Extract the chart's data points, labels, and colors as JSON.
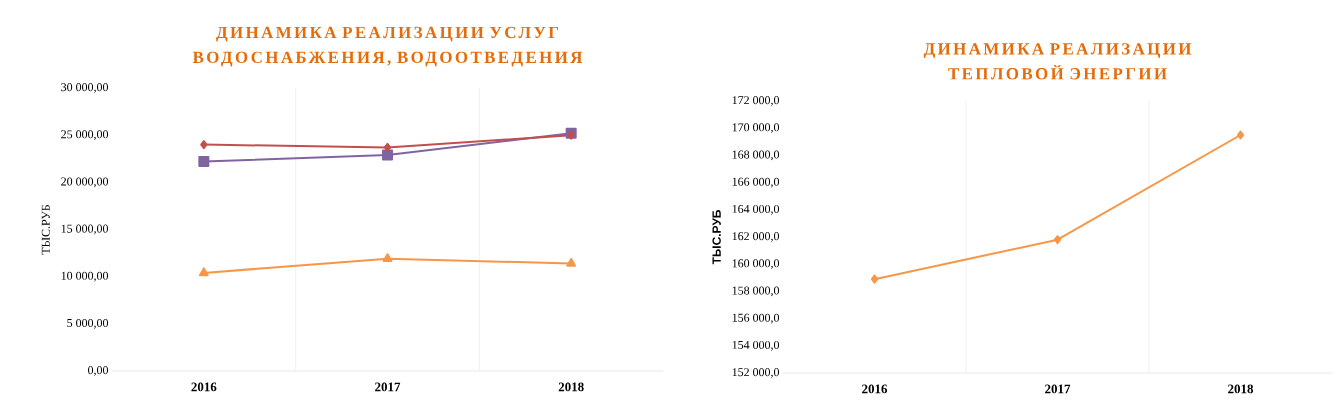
{
  "chart_data": [
    {
      "type": "line",
      "title": "ДИНАМИКА РЕАЛИЗАЦИИ УСЛУГ ВОДОСНАБЖЕНИЯ, ВОДООТВЕДЕНИЯ",
      "ylabel": "ТЫС.РУБ",
      "categories": [
        "2016",
        "2017",
        "2018"
      ],
      "series": [
        {
          "color": "#c0504d",
          "marker": "diamond",
          "values": [
            24000,
            23700,
            25000
          ]
        },
        {
          "color": "#8064a2",
          "marker": "square",
          "values": [
            22200,
            22900,
            25200
          ]
        },
        {
          "color": "#f79646",
          "marker": "triangle",
          "values": [
            10400,
            11900,
            11400
          ]
        }
      ],
      "ylim": [
        0,
        30000
      ],
      "yticks": [
        {
          "value": 0,
          "label": "0,00"
        },
        {
          "value": 5000,
          "label": "5 000,00"
        },
        {
          "value": 10000,
          "label": "10 000,00"
        },
        {
          "value": 15000,
          "label": "15 000,00"
        },
        {
          "value": 20000,
          "label": "20 000,00"
        },
        {
          "value": 25000,
          "label": "25 000,00"
        },
        {
          "value": 30000,
          "label": "30 000,00"
        }
      ],
      "grid": "x"
    },
    {
      "type": "line",
      "title": "ДИНАМИКА РЕАЛИЗАЦИИ ТЕПЛОВОЙ ЭНЕРГИИ",
      "ylabel": "ТЫС.РУБ",
      "categories": [
        "2016",
        "2017",
        "2018"
      ],
      "series": [
        {
          "color": "#f79646",
          "marker": "diamond",
          "values": [
            158900,
            161800,
            169500
          ]
        }
      ],
      "ylim": [
        152000,
        172000
      ],
      "yticks": [
        {
          "value": 152000,
          "label": "152 000,0"
        },
        {
          "value": 154000,
          "label": "154 000,0"
        },
        {
          "value": 156000,
          "label": "156 000,0"
        },
        {
          "value": 158000,
          "label": "158 000,0"
        },
        {
          "value": 160000,
          "label": "160 000,0"
        },
        {
          "value": 162000,
          "label": "162 000,0"
        },
        {
          "value": 164000,
          "label": "164 000,0"
        },
        {
          "value": 166000,
          "label": "166 000,0"
        },
        {
          "value": 168000,
          "label": "168 000,0"
        },
        {
          "value": 170000,
          "label": "170 000,0"
        },
        {
          "value": 172000,
          "label": "172 000,0"
        }
      ],
      "grid": "x"
    }
  ]
}
